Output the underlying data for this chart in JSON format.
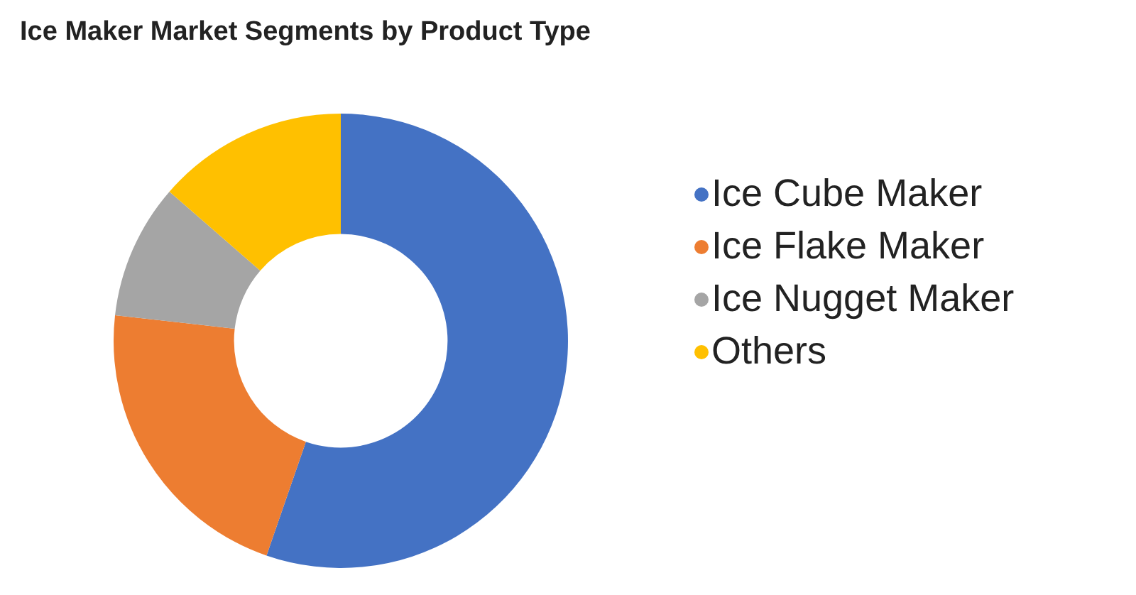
{
  "chart_data": {
    "type": "donut",
    "title": "Ice Maker Market Segments by Product Type",
    "categories": [
      "Ice Cube Maker",
      "Ice Flake Maker",
      "Ice Nugget Maker",
      "Others"
    ],
    "values": [
      55.3,
      21.5,
      9.6,
      13.6
    ],
    "colors": [
      "#4472c4",
      "#ed7d31",
      "#a5a5a5",
      "#ffc000"
    ],
    "legend": "right"
  }
}
